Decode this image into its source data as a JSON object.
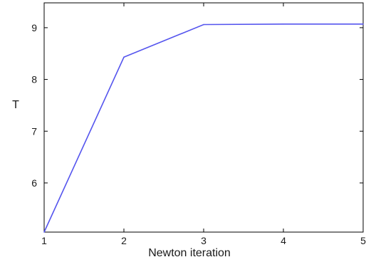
{
  "chart_data": {
    "type": "line",
    "title": "",
    "xlabel": "Newton iteration",
    "ylabel": "T",
    "xlim": [
      1,
      5
    ],
    "ylim": [
      5.05,
      9.48
    ],
    "x_ticks": [
      1,
      2,
      3,
      4,
      5
    ],
    "y_ticks": [
      6,
      7,
      8,
      9
    ],
    "x_tick_labels": [
      "1",
      "2",
      "3",
      "4",
      "5"
    ],
    "y_tick_labels": [
      "6",
      "7",
      "8",
      "9"
    ],
    "grid": false,
    "legend": "none",
    "series": [
      {
        "color": "#5555ee",
        "x": [
          1,
          2,
          3,
          4,
          5
        ],
        "y": [
          5.05,
          8.43,
          9.06,
          9.07,
          9.07
        ]
      }
    ]
  }
}
